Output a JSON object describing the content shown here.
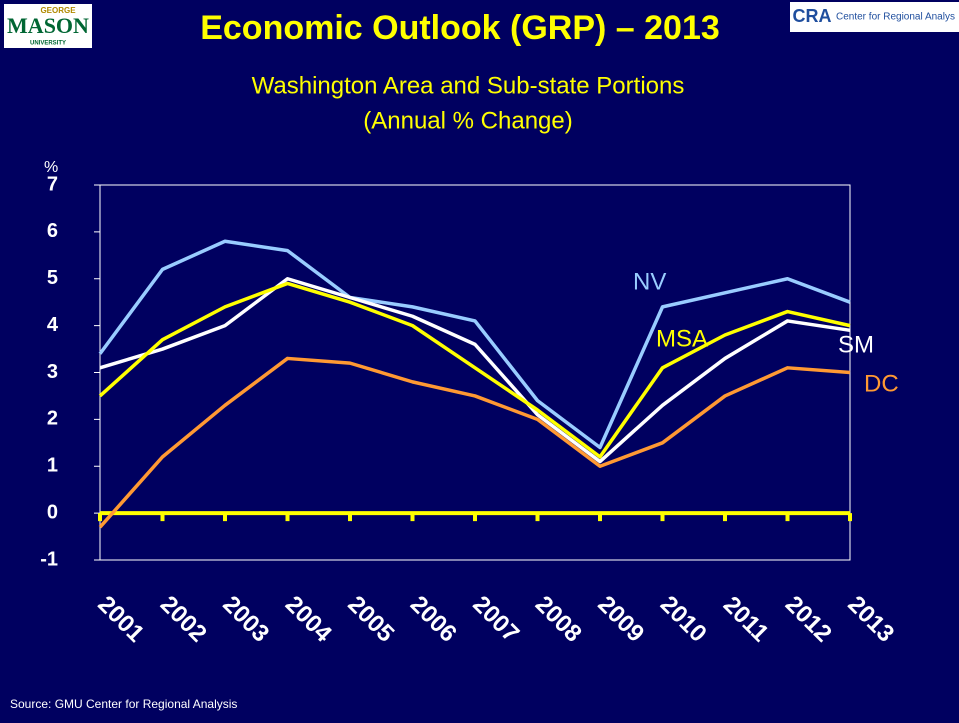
{
  "header": {
    "logo_left_top": "GEORGE",
    "logo_left": "MASON",
    "logo_left_bottom": "UNIVERSITY",
    "logo_right": "CRA",
    "logo_right_text": "Center for Regional Analys"
  },
  "chart_data": {
    "type": "line",
    "title": "Economic Outlook (GRP) – 2013",
    "subtitle": [
      "Washington Area and Sub-state Portions",
      "(Annual % Change)"
    ],
    "y_label": "%",
    "categories": [
      "2001",
      "2002",
      "2003",
      "2004",
      "2005",
      "2006",
      "2007",
      "2008",
      "2009",
      "2010",
      "2011",
      "2012",
      "2013"
    ],
    "series": [
      {
        "name": "NV",
        "color": "#99ccff",
        "values": [
          3.4,
          5.2,
          5.8,
          5.6,
          4.6,
          4.4,
          4.1,
          2.4,
          1.4,
          4.4,
          4.7,
          5.0,
          4.5
        ]
      },
      {
        "name": "SM",
        "color": "#ffffff",
        "values": [
          3.1,
          3.5,
          4.0,
          5.0,
          4.6,
          4.2,
          3.6,
          2.1,
          1.1,
          2.3,
          3.3,
          4.1,
          3.9
        ]
      },
      {
        "name": "MSA",
        "color": "#ffff00",
        "values": [
          2.5,
          3.7,
          4.4,
          4.9,
          4.5,
          4.0,
          3.1,
          2.2,
          1.2,
          3.1,
          3.8,
          4.3,
          4.0
        ]
      },
      {
        "name": "DC",
        "color": "#ff9933",
        "values": [
          -0.3,
          1.2,
          2.3,
          3.3,
          3.2,
          2.8,
          2.5,
          2.0,
          1.0,
          1.5,
          2.5,
          3.1,
          3.0
        ]
      }
    ],
    "ylim": [
      -1,
      7
    ],
    "yticks": [
      -1,
      0,
      1,
      2,
      3,
      4,
      5,
      6,
      7
    ],
    "axis_color": "#ffff00",
    "source": "Source: GMU Center for Regional Analysis"
  }
}
